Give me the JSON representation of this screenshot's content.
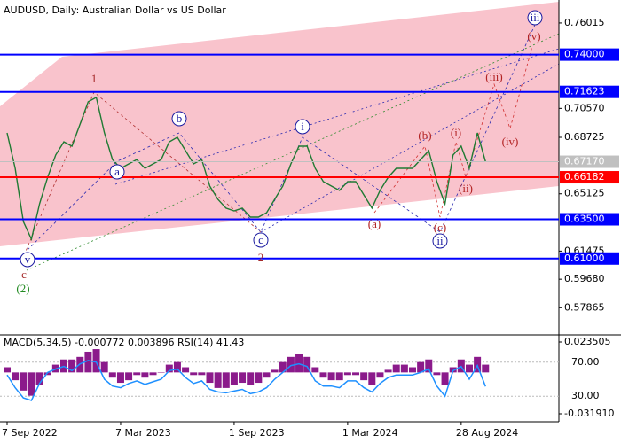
{
  "chart_data": [
    {
      "type": "line",
      "title": "AUDUSD, Daily:  Australian Dollar vs US Dollar",
      "categories": [
        "7 Sep 2022",
        null,
        null,
        null,
        null,
        null,
        null,
        null,
        null,
        null,
        null,
        null,
        null,
        null,
        "7 Mar 2023",
        null,
        null,
        null,
        null,
        null,
        null,
        null,
        null,
        null,
        null,
        null,
        null,
        null,
        "1 Sep 2023",
        null,
        null,
        null,
        null,
        null,
        null,
        null,
        null,
        null,
        null,
        null,
        null,
        null,
        "1 Mar 2024",
        null,
        null,
        null,
        null,
        null,
        null,
        null,
        null,
        null,
        null,
        null,
        null,
        null,
        "28 Aug 2024",
        null,
        null,
        null
      ],
      "values": [
        0.6901,
        0.6675,
        0.6336,
        0.6223,
        0.6449,
        0.6618,
        0.676,
        0.6844,
        0.6816,
        0.6957,
        0.7099,
        0.7127,
        0.6901,
        0.6731,
        0.6675,
        0.6703,
        0.6731,
        0.6675,
        0.6703,
        0.6731,
        0.6844,
        0.6873,
        0.6788,
        0.6703,
        0.6731,
        0.6562,
        0.6477,
        0.6421,
        0.6404,
        0.6421,
        0.6364,
        0.6364,
        0.6392,
        0.6477,
        0.6562,
        0.6703,
        0.6816,
        0.6816,
        0.6675,
        0.659,
        0.6562,
        0.6534,
        0.659,
        0.659,
        0.6505,
        0.6421,
        0.6534,
        0.6618,
        0.6675,
        0.6675,
        0.6675,
        0.6731,
        0.6788,
        0.659,
        0.6449,
        0.676,
        0.6816,
        0.6675,
        0.6901,
        0.6717
      ],
      "color": "#1f7a33",
      "ylim": [
        0.5613,
        0.7748
      ],
      "yticks": [
        0.76015,
        {
          "value": 0.7057,
          "label": "0.70570"
        },
        0.68725,
        0.65125,
        0.61475,
        {
          "value": 0.5968,
          "label": "0.59680"
        },
        0.57865
      ],
      "levels": [
        {
          "value": 0.74,
          "label": "0.74000",
          "color": "#0000ff"
        },
        {
          "value": 0.71623,
          "label": "0.71623",
          "color": "#0000ff"
        },
        {
          "value": 0.6717,
          "label": "0.67170",
          "color": "#c0c0c0"
        },
        {
          "value": 0.66182,
          "label": "0.66182",
          "color": "#ff0000"
        },
        {
          "value": 0.635,
          "label": "0.63500",
          "color": "#0000ff"
        },
        {
          "value": 0.61,
          "label": "0.61000",
          "color": "#0000ff"
        }
      ],
      "annotations": [
        {
          "text": "1",
          "color": "#a52a2a",
          "circled": false
        },
        {
          "text": "a",
          "color": "#1a1aa0",
          "circled": true
        },
        {
          "text": "b",
          "color": "#1a1aa0",
          "circled": true
        },
        {
          "text": "c",
          "color": "#1a1aa0",
          "circled": true
        },
        {
          "text": "2",
          "color": "#a52a2a",
          "circled": false
        },
        {
          "text": "i",
          "color": "#1a1aa0",
          "circled": true
        },
        {
          "text": "(a)",
          "color": "#b22222",
          "circled": false
        },
        {
          "text": "(b)",
          "color": "#b22222",
          "circled": false
        },
        {
          "text": "(c)",
          "color": "#b22222",
          "circled": false
        },
        {
          "text": "ii",
          "color": "#1a1aa0",
          "circled": true
        },
        {
          "text": "(i)",
          "color": "#b22222",
          "circled": false
        },
        {
          "text": "(ii)",
          "color": "#b22222",
          "circled": false
        },
        {
          "text": "(iii)",
          "color": "#b22222",
          "circled": false
        },
        {
          "text": "(iv)",
          "color": "#b22222",
          "circled": false
        },
        {
          "text": "(v)",
          "color": "#b22222",
          "circled": false
        },
        {
          "text": "iii",
          "color": "#1a1aa0",
          "circled": true
        },
        {
          "text": "v",
          "color": "#1a1aa0",
          "circled": true
        },
        {
          "text": "c",
          "color": "#a52a2a",
          "circled": false
        },
        {
          "text": "(2)",
          "color": "#228b22",
          "circled": false
        }
      ]
    },
    {
      "type": "bar",
      "title": "MACD(5,34,5) -0.000772 0.003896 RSI(14) 41.43",
      "ylim": [
        -0.03807,
        0.02761
      ],
      "yticks": [
        0.023505,
        {
          "value": -0.03191,
          "label": "-0.031910"
        }
      ],
      "y2lim": [
        0,
        100
      ],
      "y2ticks": [
        {
          "value": 70,
          "label": "70.00"
        },
        {
          "value": 30,
          "label": "30.00"
        }
      ],
      "series": [
        {
          "color": "#8b1a8b",
          "values": [
            0.004,
            -0.006,
            -0.014,
            -0.018,
            -0.01,
            -0.002,
            0.006,
            0.01,
            0.01,
            0.012,
            0.016,
            0.018,
            0.008,
            -0.004,
            -0.008,
            -0.006,
            -0.002,
            -0.004,
            -0.002,
            0.0,
            0.006,
            0.008,
            0.004,
            -0.002,
            -0.002,
            -0.008,
            -0.012,
            -0.012,
            -0.01,
            -0.008,
            -0.01,
            -0.008,
            -0.004,
            0.002,
            0.008,
            0.012,
            0.014,
            0.012,
            0.004,
            -0.004,
            -0.006,
            -0.006,
            -0.002,
            -0.002,
            -0.006,
            -0.01,
            -0.004,
            0.002,
            0.006,
            0.006,
            0.004,
            0.008,
            0.01,
            -0.002,
            -0.01,
            0.004,
            0.01,
            0.006,
            0.012,
            0.006
          ]
        },
        {
          "color": "#1e90ff",
          "axis": "y2",
          "values": [
            55,
            40,
            28,
            25,
            45,
            58,
            62,
            65,
            60,
            68,
            72,
            70,
            50,
            42,
            40,
            45,
            48,
            44,
            47,
            50,
            60,
            62,
            52,
            45,
            48,
            38,
            35,
            34,
            36,
            38,
            33,
            35,
            40,
            50,
            58,
            66,
            68,
            65,
            48,
            42,
            42,
            40,
            48,
            48,
            40,
            35,
            45,
            52,
            55,
            55,
            55,
            58,
            62,
            42,
            30,
            60,
            65,
            50,
            66,
            41.43
          ]
        }
      ]
    }
  ]
}
